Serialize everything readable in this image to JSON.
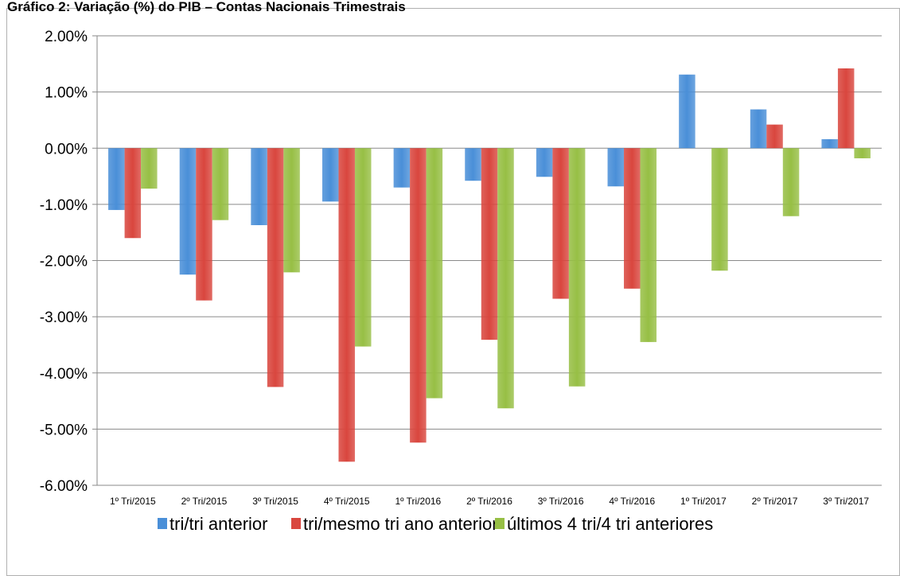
{
  "chart_data": {
    "type": "bar",
    "title": "Gráfico 2: Variação (%) do PIB – Contas Nacionais Trimestrais",
    "categories": [
      "1º Tri/2015",
      "2º Tri/2015",
      "3º Tri/2015",
      "4º Tri/2015",
      "1º Tri/2016",
      "2º Tri/2016",
      "3º Tri/2016",
      "4º Tri/2016",
      "1º Tri/2017",
      "2º Tri/2017",
      "3º Tri/2017"
    ],
    "series": [
      {
        "name": "tri/tri anterior",
        "color": "#4a8fd8",
        "values": [
          -1.1,
          -2.25,
          -1.37,
          -0.95,
          -0.7,
          -0.58,
          -0.51,
          -0.68,
          1.31,
          0.69,
          0.16
        ]
      },
      {
        "name": "tri/mesmo tri ano anterior",
        "color": "#d9463e",
        "values": [
          -1.6,
          -2.71,
          -4.25,
          -5.58,
          -5.24,
          -3.41,
          -2.68,
          -2.5,
          0.0,
          0.42,
          1.42
        ]
      },
      {
        "name": "últimos 4 tri/4 tri anteriores",
        "color": "#97bf45",
        "values": [
          -0.72,
          -1.28,
          -2.21,
          -3.53,
          -4.45,
          -4.63,
          -4.24,
          -3.45,
          -2.18,
          -1.21,
          -0.18
        ]
      }
    ],
    "ylim": [
      -6,
      2
    ],
    "yticks": [
      "2.00%",
      "1.00%",
      "0.00%",
      "-1.00%",
      "-2.00%",
      "-3.00%",
      "-4.00%",
      "-5.00%",
      "-6.00%"
    ],
    "ytick_values": [
      2,
      1,
      0,
      -1,
      -2,
      -3,
      -4,
      -5,
      -6
    ],
    "grid": true,
    "legend_position": "bottom"
  }
}
